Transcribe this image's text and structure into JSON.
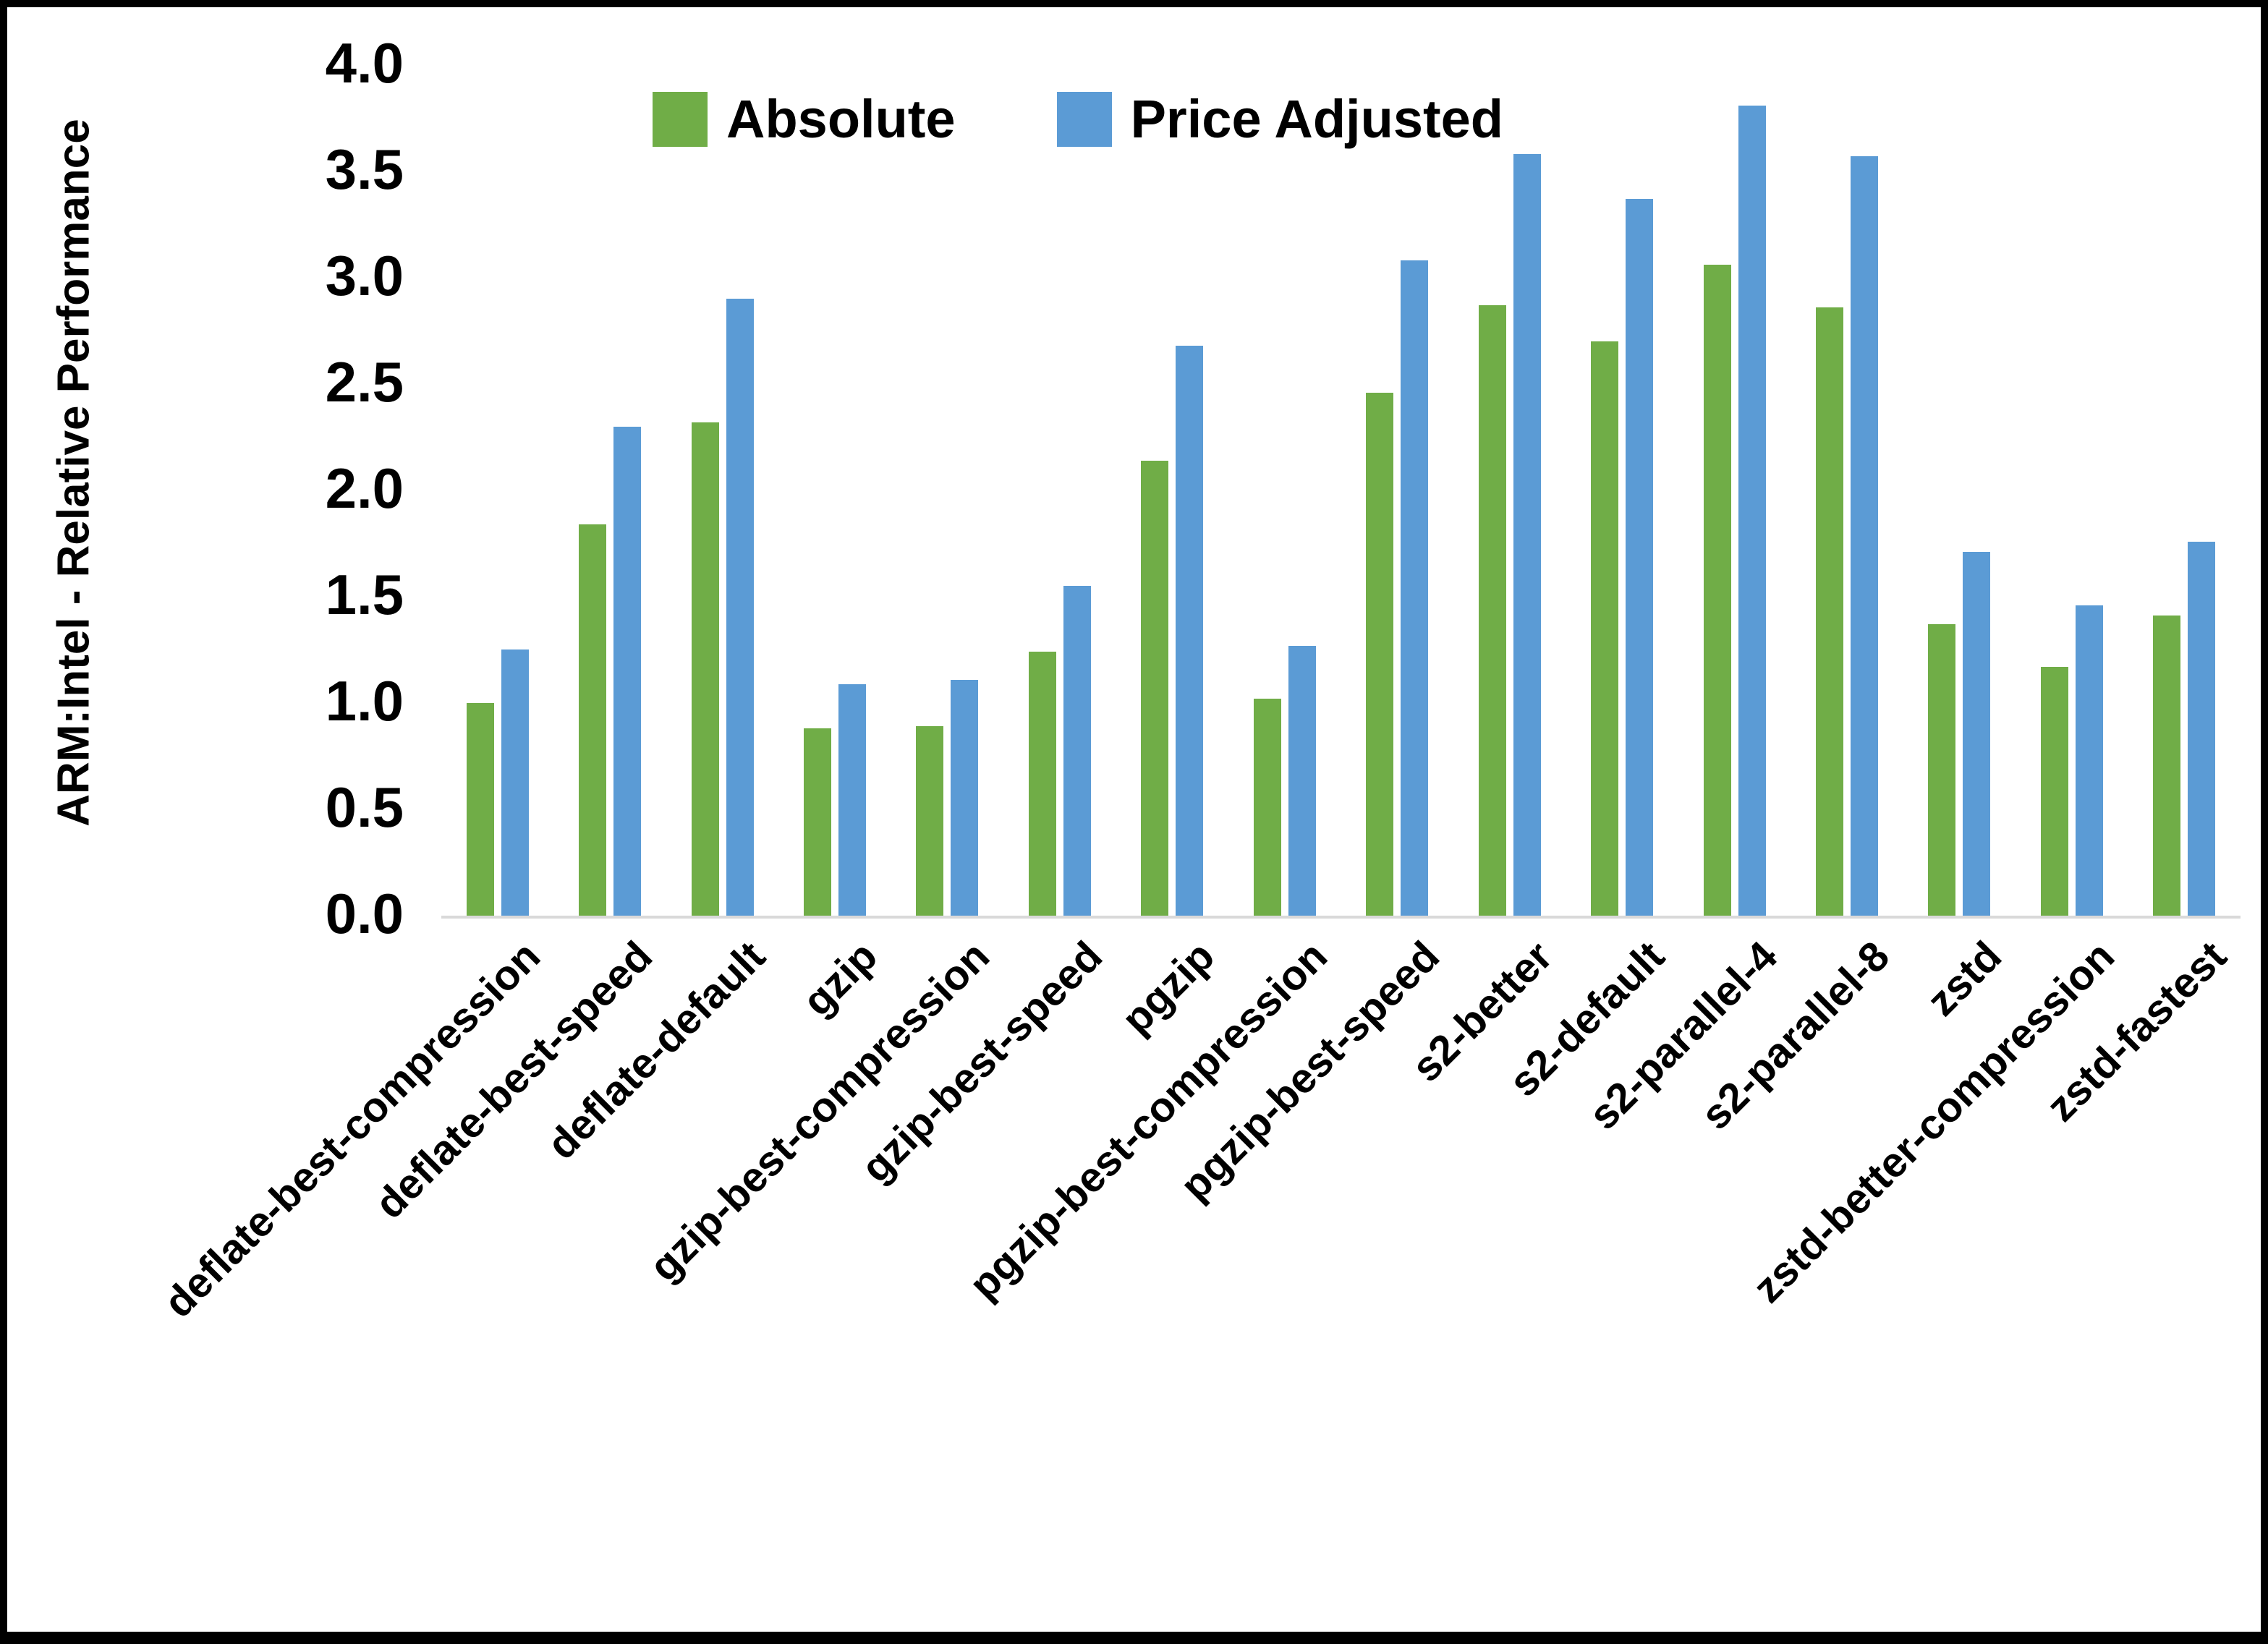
{
  "chart_data": {
    "type": "bar",
    "title": "",
    "ylabel": "ARM:Intel - Relative Performance",
    "xlabel": "",
    "ylim": [
      0.0,
      4.0
    ],
    "ytick_step": 0.5,
    "ytick_labels": [
      "0.0",
      "0.5",
      "1.0",
      "1.5",
      "2.0",
      "2.5",
      "3.0",
      "3.5",
      "4.0"
    ],
    "grid": false,
    "legend_position": "top-center",
    "categories": [
      "deflate-best-compression",
      "deflate-best-speed",
      "deflate-default",
      "gzip",
      "gzip-best-compression",
      "gzip-best-speed",
      "pgzip",
      "pgzip-best-compression",
      "pgzip-best-speed",
      "s2-better",
      "s2-default",
      "s2-parallel-4",
      "s2-parallel-8",
      "zstd",
      "zstd-better-compression",
      "zstd-fastest"
    ],
    "series": [
      {
        "name": "Absolute",
        "color": "#70ad47",
        "values": [
          1.0,
          1.84,
          2.32,
          0.88,
          0.89,
          1.24,
          2.14,
          1.02,
          2.46,
          2.87,
          2.7,
          3.06,
          2.86,
          1.37,
          1.17,
          1.41
        ]
      },
      {
        "name": "Price Adjusted",
        "color": "#5b9bd5",
        "values": [
          1.25,
          2.3,
          2.9,
          1.09,
          1.11,
          1.55,
          2.68,
          1.27,
          3.08,
          3.58,
          3.37,
          3.81,
          3.57,
          1.71,
          1.46,
          1.76
        ]
      }
    ]
  },
  "colors": {
    "axis_line": "#d9d9d9",
    "text": "#000000",
    "background": "#ffffff",
    "frame": "#000000"
  }
}
